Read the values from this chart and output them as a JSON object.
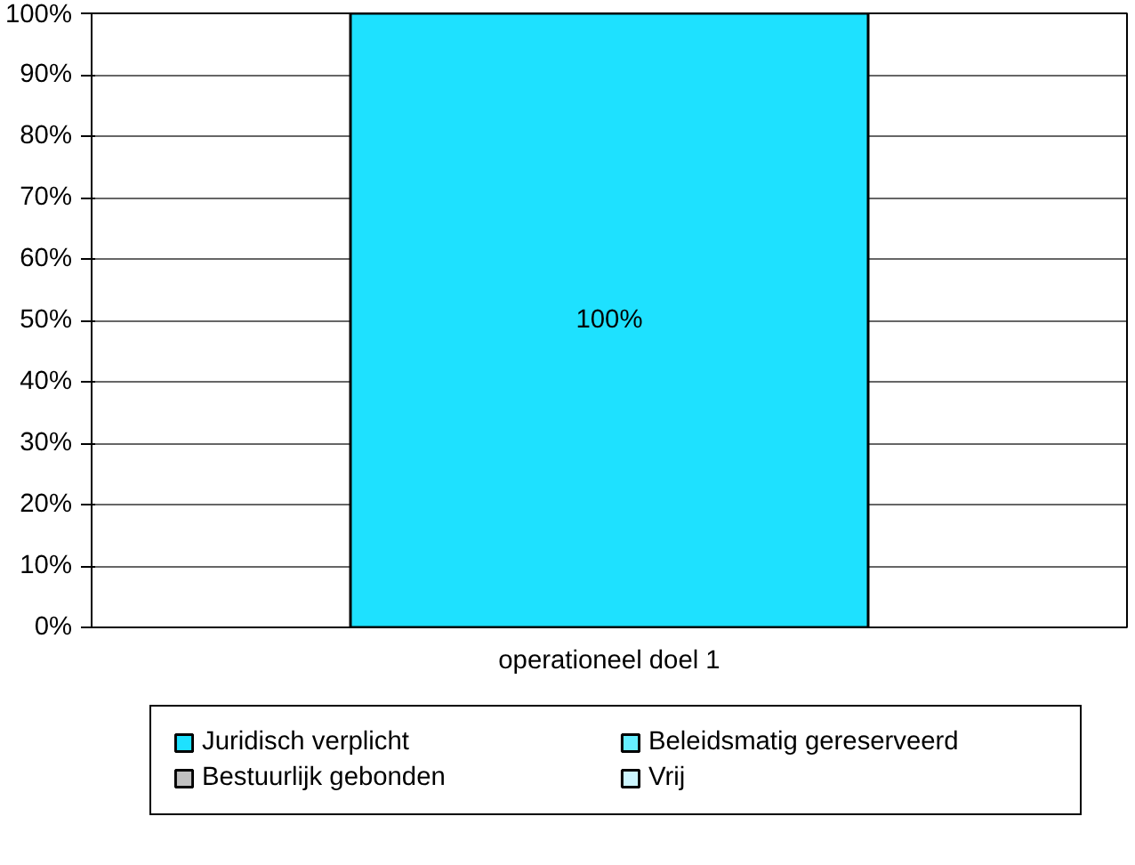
{
  "chart_data": {
    "type": "bar",
    "stacked": true,
    "categories": [
      "operationeel doel 1"
    ],
    "series": [
      {
        "name": "Juridisch verplicht",
        "color": "#1ee1ff",
        "values": [
          100
        ],
        "value_labels": [
          "100%"
        ]
      },
      {
        "name": "Beleidsmatig gereserveerd",
        "color": "#66eeff",
        "values": [
          0
        ]
      },
      {
        "name": "Bestuurlijk gebonden",
        "color": "#c0c0c0",
        "values": [
          0
        ]
      },
      {
        "name": "Vrij",
        "color": "#ccf6ff",
        "values": [
          0
        ]
      }
    ],
    "ylim": [
      0,
      100
    ],
    "yticks": [
      {
        "value": 0,
        "label": "0%"
      },
      {
        "value": 10,
        "label": "10%"
      },
      {
        "value": 20,
        "label": "20%"
      },
      {
        "value": 30,
        "label": "30%"
      },
      {
        "value": 40,
        "label": "40%"
      },
      {
        "value": 50,
        "label": "50%"
      },
      {
        "value": 60,
        "label": "60%"
      },
      {
        "value": 70,
        "label": "70%"
      },
      {
        "value": 80,
        "label": "80%"
      },
      {
        "value": 90,
        "label": "90%"
      },
      {
        "value": 100,
        "label": "100%"
      }
    ],
    "grid": "y",
    "legend": "bottom"
  }
}
